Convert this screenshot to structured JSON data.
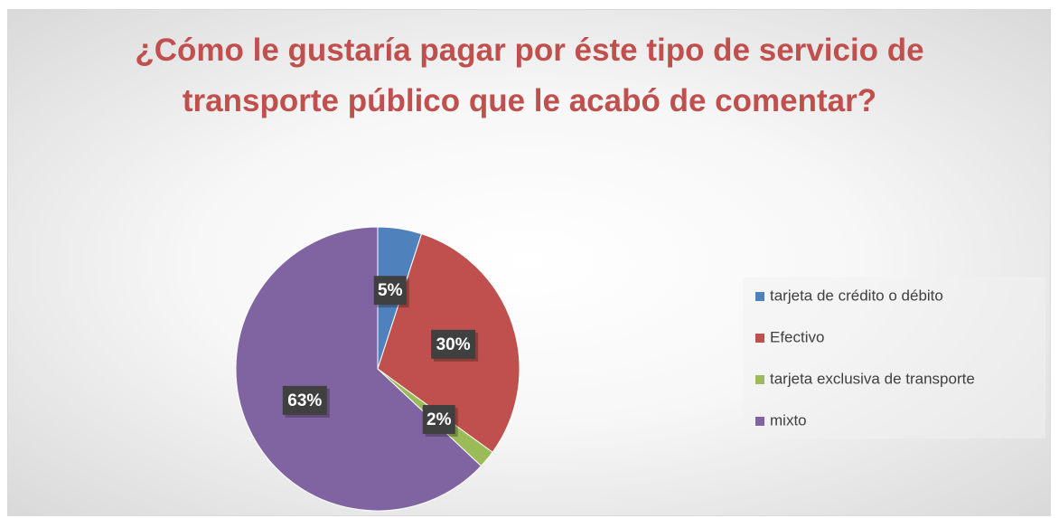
{
  "chart_data": {
    "type": "pie",
    "title": "¿Cómo le gustaría pagar por éste tipo de servicio de transporte público que le acabó de comentar?",
    "categories": [
      "tarjeta de crédito o débito",
      "Efectivo",
      "tarjeta exclusiva de transporte",
      "mixto"
    ],
    "values": [
      5,
      30,
      2,
      63
    ],
    "value_labels": [
      "5%",
      "30%",
      "2%",
      "63%"
    ],
    "colors": [
      "#4f81bd",
      "#c0504d",
      "#9bbb59",
      "#8064a2"
    ],
    "legend": "right"
  }
}
